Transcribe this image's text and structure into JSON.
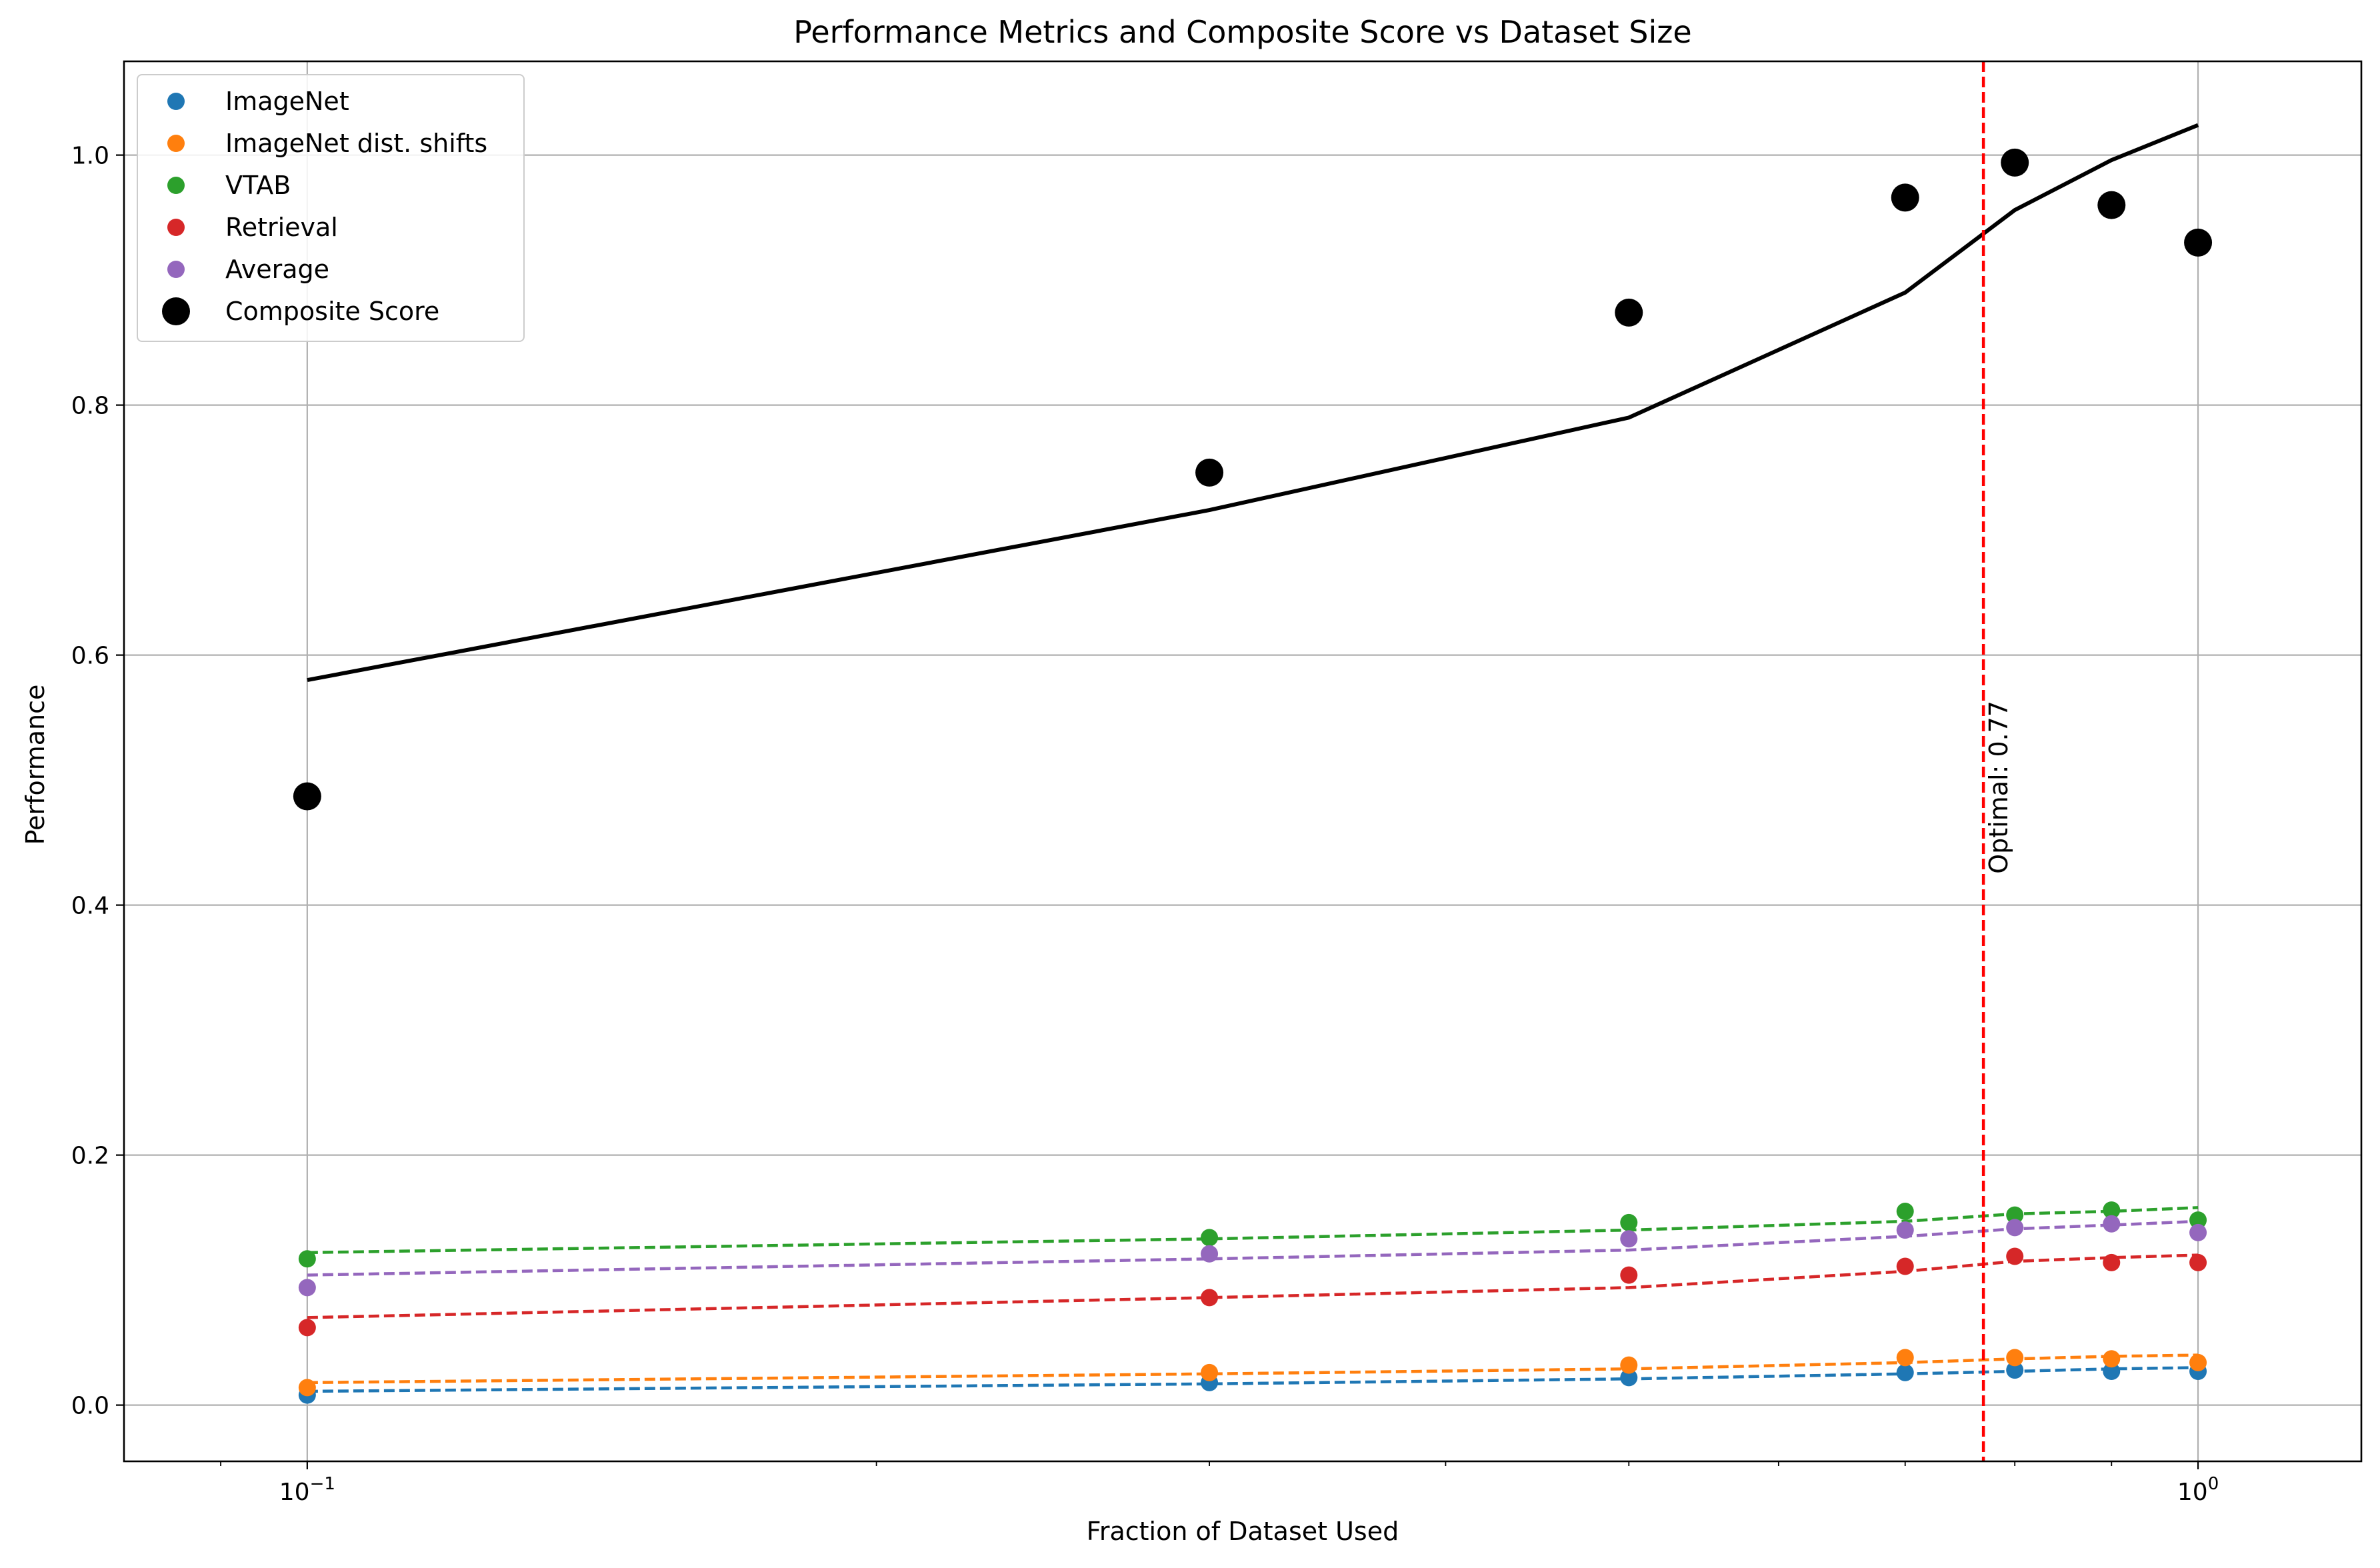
{
  "chart_data": {
    "type": "scatter",
    "title": "Performance Metrics and Composite Score vs Dataset Size",
    "xlabel": "Fraction of Dataset Used",
    "ylabel": "Performance",
    "xscale": "log",
    "xlim": [
      0.08,
      1.22
    ],
    "ylim": [
      -0.045,
      1.075
    ],
    "x": [
      0.1,
      0.3,
      0.5,
      0.7,
      0.8,
      0.9,
      1.0
    ],
    "x_tick_labels": [
      {
        "value": 0.1,
        "base": "10",
        "exp": "−1"
      },
      {
        "value": 1.0,
        "base": "10",
        "exp": "0"
      }
    ],
    "y_ticks": [
      0.0,
      0.2,
      0.4,
      0.6,
      0.8,
      1.0
    ],
    "y_tick_labels": [
      "0.0",
      "0.2",
      "0.4",
      "0.6",
      "0.8",
      "1.0"
    ],
    "grid": true,
    "legend_position": "top-left",
    "series": [
      {
        "name": "ImageNet",
        "color": "#1f77b4",
        "marker": "dot",
        "values": [
          0.008,
          0.018,
          0.022,
          0.026,
          0.028,
          0.027,
          0.027
        ],
        "fit": [
          0.011,
          0.017,
          0.021,
          0.025,
          0.027,
          0.029,
          0.03
        ]
      },
      {
        "name": "ImageNet dist. shifts",
        "color": "#ff7f0e",
        "marker": "dot",
        "values": [
          0.014,
          0.026,
          0.032,
          0.038,
          0.038,
          0.037,
          0.034
        ],
        "fit": [
          0.018,
          0.025,
          0.029,
          0.034,
          0.037,
          0.039,
          0.04
        ]
      },
      {
        "name": "VTAB",
        "color": "#2ca02c",
        "marker": "dot",
        "values": [
          0.117,
          0.134,
          0.146,
          0.155,
          0.152,
          0.156,
          0.148
        ],
        "fit": [
          0.122,
          0.133,
          0.14,
          0.147,
          0.153,
          0.155,
          0.158
        ]
      },
      {
        "name": "Retrieval",
        "color": "#d62728",
        "marker": "dot",
        "values": [
          0.062,
          0.086,
          0.104,
          0.111,
          0.119,
          0.114,
          0.114
        ],
        "fit": [
          0.07,
          0.086,
          0.094,
          0.107,
          0.115,
          0.118,
          0.12
        ]
      },
      {
        "name": "Average",
        "color": "#9467bd",
        "marker": "dot",
        "values": [
          0.094,
          0.121,
          0.133,
          0.14,
          0.142,
          0.145,
          0.138
        ],
        "fit": [
          0.104,
          0.117,
          0.124,
          0.135,
          0.141,
          0.144,
          0.147
        ]
      },
      {
        "name": "Composite Score",
        "color": "#000000",
        "marker": "large-dot",
        "values": [
          0.487,
          0.746,
          0.874,
          0.966,
          0.994,
          0.96,
          0.93
        ],
        "fit": [
          0.58,
          0.716,
          0.79,
          0.89,
          0.956,
          0.996,
          1.024
        ]
      }
    ],
    "optimal_line": {
      "x": 0.77,
      "label": "Optimal: 0.77",
      "color": "#ff0000"
    }
  }
}
